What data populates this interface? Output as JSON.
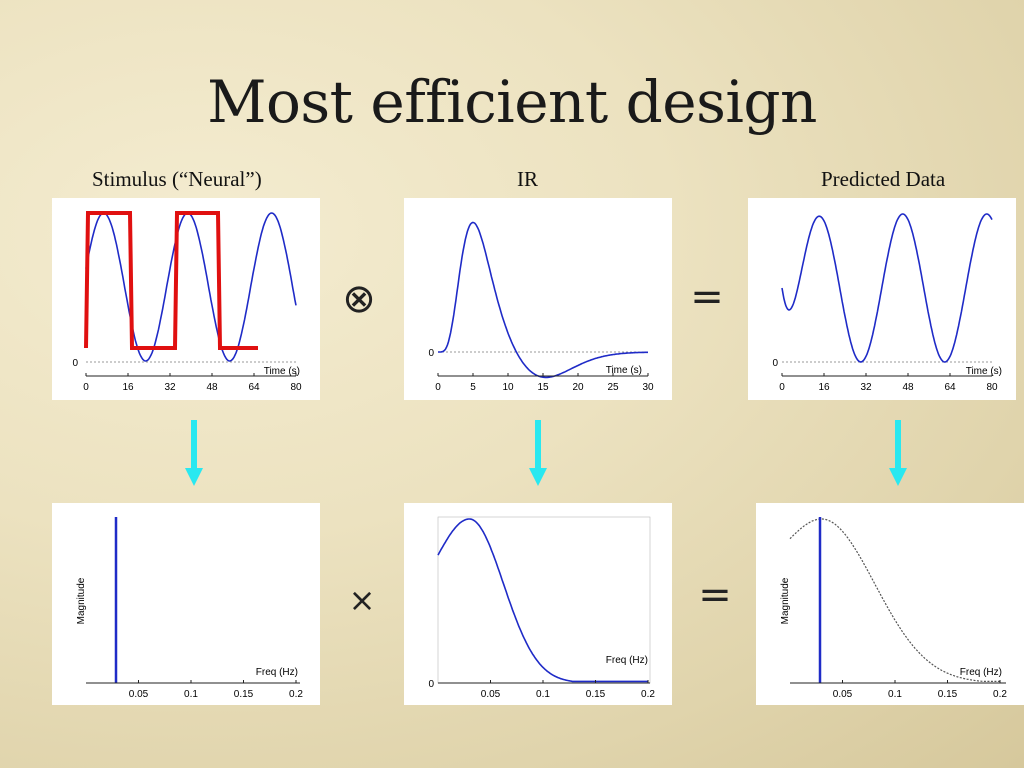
{
  "title": "Most efficient design",
  "labels": {
    "stimulus": "Stimulus (“Neural”)",
    "ir": "IR",
    "predicted": "Predicted Data"
  },
  "operators": {
    "convolve": "⊗",
    "equals_top": "=",
    "times": "×",
    "equals_bottom": "="
  },
  "colors": {
    "signal": "#1f2bc7",
    "stimulus": "#e01010",
    "arrow": "#29e8f0",
    "spectrum_dashed": "#555555"
  },
  "plots": {
    "stimulus_time": {
      "xlabel": "Time (s)",
      "xticks": [
        "0",
        "16",
        "32",
        "48",
        "64",
        "80"
      ],
      "yticks": [
        "0"
      ]
    },
    "ir_time": {
      "xlabel": "Time (s)",
      "xticks": [
        "0",
        "5",
        "10",
        "15",
        "20",
        "25",
        "30"
      ],
      "yticks": [
        "0"
      ]
    },
    "predicted_time": {
      "xlabel": "Time (s)",
      "xticks": [
        "0",
        "16",
        "32",
        "48",
        "64",
        "80"
      ],
      "yticks": [
        "0"
      ]
    },
    "stimulus_freq": {
      "xlabel": "Freq (Hz)",
      "ylabel": "Magnitude",
      "xticks": [
        "0.05",
        "0.1",
        "0.15",
        "0.2"
      ]
    },
    "ir_freq": {
      "xlabel": "Freq (Hz)",
      "xticks": [
        "0.05",
        "0.1",
        "0.15",
        "0.2"
      ],
      "yticks": [
        "0"
      ]
    },
    "predicted_freq": {
      "xlabel": "Freq (Hz)",
      "ylabel": "Magnitude",
      "xticks": [
        "0.05",
        "0.1",
        "0.15",
        "0.2"
      ]
    }
  }
}
